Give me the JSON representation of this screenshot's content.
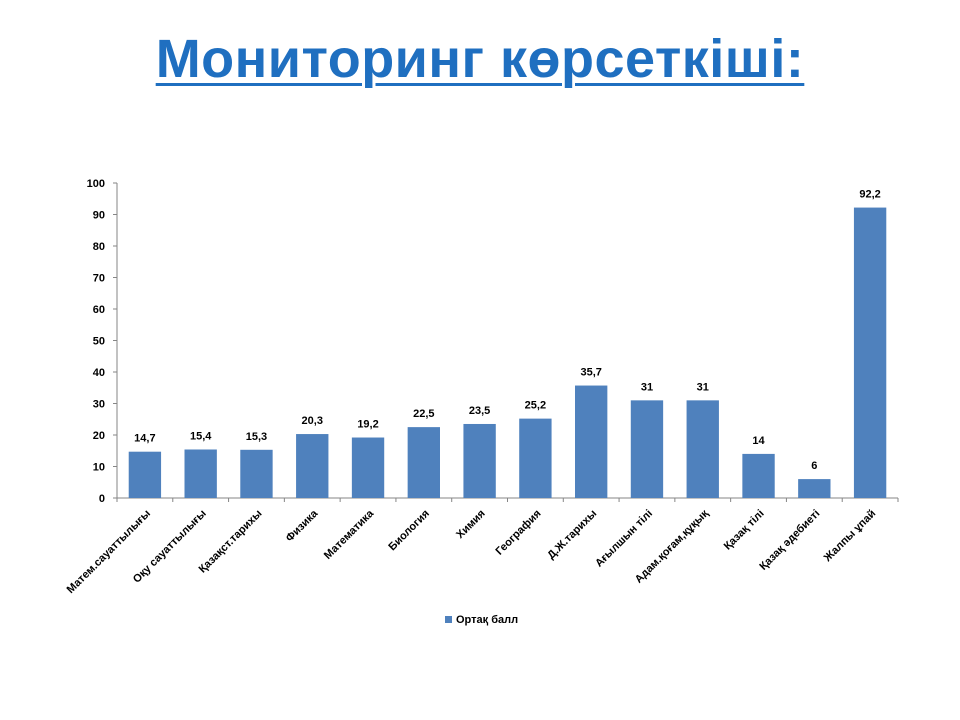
{
  "slide": {
    "title": "Мониторинг көрсеткіші:",
    "title_color": "#1F6FC0"
  },
  "chart_data": {
    "type": "bar",
    "title": "",
    "xlabel": "",
    "ylabel": "",
    "ylim": [
      0,
      100
    ],
    "yticks": [
      0,
      10,
      20,
      30,
      40,
      50,
      60,
      70,
      80,
      90,
      100
    ],
    "grid": false,
    "legend_position": "bottom",
    "bar_color": "#4F81BD",
    "categories": [
      "Матем.сауаттылығы",
      "Оқу сауаттылығы",
      "Қазақст.тарихы",
      "Физика",
      "Математика",
      "Биология",
      "Химия",
      "География",
      "Д.Ж.тарихы",
      "Ағылшын тілі",
      "Адам.қоғам,құқық",
      "Қазақ тілі",
      "Қазақ әдебиеті",
      "Жалпы ұпай"
    ],
    "series": [
      {
        "name": "Ортақ балл",
        "values": [
          14.7,
          15.4,
          15.3,
          20.3,
          19.2,
          22.5,
          23.5,
          25.2,
          35.7,
          31,
          31,
          14,
          6,
          92.2
        ],
        "labels": [
          "14,7",
          "15,4",
          "15,3",
          "20,3",
          "19,2",
          "22,5",
          "23,5",
          "25,2",
          "35,7",
          "31",
          "31",
          "14",
          "6",
          "92,2"
        ]
      }
    ]
  }
}
